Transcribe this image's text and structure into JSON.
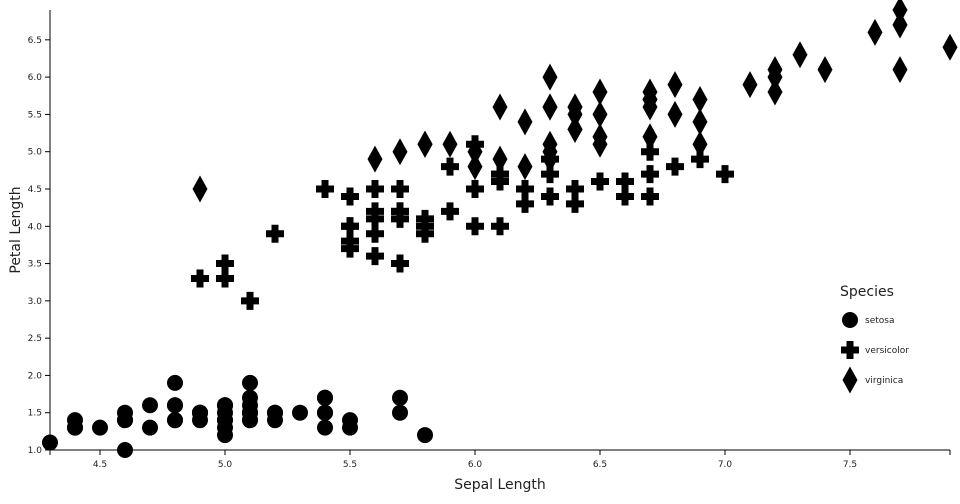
{
  "chart_data": {
    "type": "scatter",
    "title": "",
    "xlabel": "Sepal Length",
    "ylabel": "Petal Length",
    "xlim": [
      4.3,
      7.9
    ],
    "ylim": [
      1.0,
      6.9
    ],
    "xticks": [
      "4.5",
      "5.0",
      "5.5",
      "6.0",
      "6.5",
      "7.0",
      "7.5"
    ],
    "yticks": [
      "1.0",
      "1.5",
      "2.0",
      "2.5",
      "3.0",
      "3.5",
      "4.0",
      "4.5",
      "5.0",
      "5.5",
      "6.0",
      "6.5"
    ],
    "grid": false,
    "legend": {
      "title": "Species",
      "placement": "right"
    },
    "color": "#000000",
    "series": [
      {
        "name": "setosa",
        "marker": "circle",
        "x": [
          5.1,
          4.9,
          4.7,
          4.6,
          5.0,
          5.4,
          4.6,
          5.0,
          4.4,
          4.9,
          5.4,
          4.8,
          4.8,
          4.3,
          5.8,
          5.7,
          5.4,
          5.1,
          5.7,
          5.1,
          5.4,
          5.1,
          4.6,
          5.1,
          4.8,
          5.0,
          5.0,
          5.2,
          5.2,
          4.7,
          4.8,
          5.4,
          5.2,
          5.5,
          4.9,
          5.0,
          5.5,
          4.9,
          4.4,
          5.1,
          5.0,
          4.5,
          4.4,
          5.0,
          5.1,
          4.8,
          5.1,
          4.6,
          5.3,
          5.0
        ],
        "y": [
          1.4,
          1.4,
          1.3,
          1.5,
          1.4,
          1.7,
          1.4,
          1.5,
          1.4,
          1.5,
          1.5,
          1.6,
          1.4,
          1.1,
          1.2,
          1.5,
          1.3,
          1.4,
          1.7,
          1.5,
          1.7,
          1.5,
          1.0,
          1.7,
          1.9,
          1.6,
          1.6,
          1.5,
          1.4,
          1.6,
          1.6,
          1.5,
          1.5,
          1.4,
          1.5,
          1.2,
          1.3,
          1.5,
          1.3,
          1.5,
          1.3,
          1.3,
          1.3,
          1.6,
          1.9,
          1.4,
          1.6,
          1.4,
          1.5,
          1.4
        ]
      },
      {
        "name": "versicolor",
        "marker": "cross",
        "x": [
          7.0,
          6.4,
          6.9,
          5.5,
          6.5,
          5.7,
          6.3,
          4.9,
          6.6,
          5.2,
          5.0,
          5.9,
          6.0,
          6.1,
          5.6,
          6.7,
          5.6,
          5.8,
          6.2,
          5.6,
          5.9,
          6.1,
          6.3,
          6.1,
          6.4,
          6.6,
          6.8,
          6.7,
          6.0,
          5.7,
          5.5,
          5.5,
          5.8,
          6.0,
          5.4,
          6.0,
          6.7,
          6.3,
          5.6,
          5.5,
          5.5,
          6.1,
          5.8,
          5.0,
          5.6,
          5.7,
          5.7,
          6.2,
          5.1,
          5.7
        ],
        "y": [
          4.7,
          4.5,
          4.9,
          4.0,
          4.6,
          4.5,
          4.7,
          3.3,
          4.6,
          3.9,
          3.5,
          4.2,
          4.0,
          4.7,
          3.6,
          4.4,
          4.5,
          4.1,
          4.5,
          3.9,
          4.8,
          4.0,
          4.9,
          4.7,
          4.3,
          4.4,
          4.8,
          5.0,
          4.5,
          3.5,
          3.8,
          3.7,
          3.9,
          5.1,
          4.5,
          4.5,
          4.7,
          4.4,
          4.1,
          4.0,
          4.4,
          4.6,
          4.0,
          3.3,
          4.2,
          4.2,
          4.2,
          4.3,
          3.0,
          4.1
        ]
      },
      {
        "name": "virginica",
        "marker": "diamond",
        "x": [
          6.3,
          5.8,
          7.1,
          6.3,
          6.5,
          7.6,
          4.9,
          7.3,
          6.7,
          7.2,
          6.5,
          6.4,
          6.8,
          5.7,
          5.8,
          6.4,
          6.5,
          7.7,
          7.7,
          6.0,
          6.9,
          5.6,
          7.7,
          6.3,
          6.7,
          7.2,
          6.2,
          6.1,
          6.4,
          7.2,
          7.4,
          7.9,
          6.4,
          6.3,
          6.1,
          7.7,
          6.3,
          6.4,
          6.0,
          6.9,
          6.7,
          6.9,
          5.8,
          6.8,
          6.7,
          6.7,
          6.3,
          6.5,
          6.2,
          5.9
        ],
        "y": [
          6.0,
          5.1,
          5.9,
          5.6,
          5.8,
          6.6,
          4.5,
          6.3,
          5.8,
          6.1,
          5.1,
          5.3,
          5.5,
          5.0,
          5.1,
          5.3,
          5.5,
          6.7,
          6.9,
          5.0,
          5.7,
          4.9,
          6.7,
          4.9,
          5.7,
          6.0,
          4.8,
          4.9,
          5.6,
          5.8,
          6.1,
          6.4,
          5.6,
          5.1,
          5.6,
          6.1,
          5.6,
          5.5,
          4.8,
          5.4,
          5.6,
          5.1,
          5.1,
          5.9,
          5.7,
          5.2,
          5.0,
          5.2,
          5.4,
          5.1
        ]
      }
    ]
  }
}
